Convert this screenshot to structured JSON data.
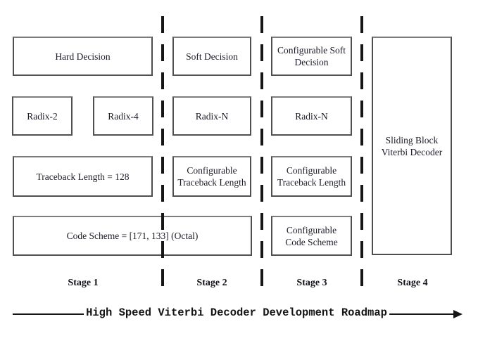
{
  "title": "High Speed Viterbi Decoder Development Roadmap",
  "stages": {
    "s1": {
      "label": "Stage 1"
    },
    "s2": {
      "label": "Stage 2"
    },
    "s3": {
      "label": "Stage 3"
    },
    "s4": {
      "label": "Stage 4"
    }
  },
  "boxes": {
    "hard_decision": "Hard Decision",
    "soft_decision": "Soft Decision",
    "config_soft_decision": "Configurable Soft Decision",
    "radix_2": "Radix-2",
    "radix_4": "Radix-4",
    "radix_n_stage2": "Radix-N",
    "radix_n_stage3": "Radix-N",
    "traceback_length_128": "Traceback Length = 128",
    "config_traceback_stage2": "Configurable Traceback Length",
    "config_traceback_stage3": "Configurable Traceback Length",
    "code_scheme": "Code Scheme = [171, 133] (Octal)",
    "config_code_scheme": "Configurable Code Scheme",
    "sliding_block": "Sliding Block Viterbi Decoder"
  },
  "colors": {
    "background": "#ffffff",
    "box_border": "#4f4f4f",
    "box_text": "#1b1b28",
    "divider": "#161616",
    "axis": "#151515"
  }
}
